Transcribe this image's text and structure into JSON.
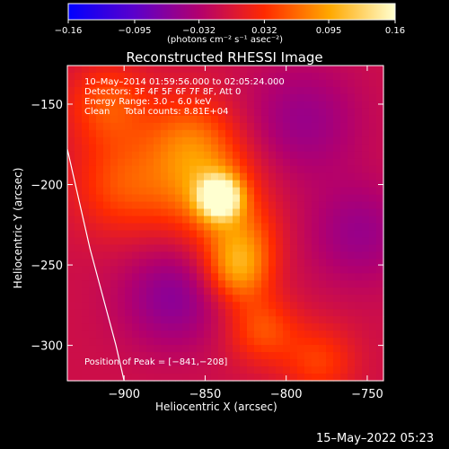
{
  "colorbar": {
    "ticks": [
      -0.16,
      -0.095,
      -0.032,
      0.032,
      0.095,
      0.16
    ],
    "tick_labels": [
      "−0.16",
      "−0.095",
      "−0.032",
      "0.032",
      "0.095",
      "0.16"
    ],
    "units_label": "(photons cm⁻² s⁻¹ asec⁻²)",
    "colormap": [
      "#0000ff",
      "#5a00cc",
      "#b2006e",
      "#ff2a00",
      "#ffa800",
      "#ffffd0"
    ]
  },
  "chart_data": {
    "type": "heatmap",
    "title": "Reconstructed RHESSI Image",
    "xlabel": "Heliocentric X (arcsec)",
    "ylabel": "Heliocentric Y (arcsec)",
    "xlim": [
      -935,
      -740
    ],
    "ylim": [
      -322,
      -126
    ],
    "x_ticks": [
      -900,
      -850,
      -800,
      -750
    ],
    "x_tick_labels": [
      "−900",
      "−850",
      "−800",
      "−750"
    ],
    "y_ticks": [
      -150,
      -200,
      -250,
      -300
    ],
    "y_tick_labels": [
      "−150",
      "−200",
      "−250",
      "−300"
    ],
    "peak": [
      -841,
      -208
    ],
    "limb_curve": [
      [
        -935,
        -178
      ],
      [
        -921,
        -240
      ],
      [
        -905,
        -300
      ],
      [
        -900,
        -322
      ]
    ],
    "sources": [
      {
        "x": -841,
        "y": -208,
        "amplitude": 0.16,
        "size": 9
      },
      {
        "x": -848,
        "y": -203,
        "amplitude": 0.08,
        "size": 22
      },
      {
        "x": -830,
        "y": -255,
        "amplitude": 0.08,
        "size": 14
      },
      {
        "x": -828,
        "y": -235,
        "amplitude": 0.06,
        "size": 16
      },
      {
        "x": -860,
        "y": -170,
        "amplitude": 0.06,
        "size": 20
      },
      {
        "x": -900,
        "y": -200,
        "amplitude": 0.06,
        "size": 22
      },
      {
        "x": -910,
        "y": -150,
        "amplitude": 0.06,
        "size": 18
      },
      {
        "x": -815,
        "y": -290,
        "amplitude": 0.06,
        "size": 15
      },
      {
        "x": -780,
        "y": -310,
        "amplitude": 0.05,
        "size": 16
      },
      {
        "x": -870,
        "y": -270,
        "amplitude": -0.05,
        "size": 22
      },
      {
        "x": -790,
        "y": -160,
        "amplitude": -0.04,
        "size": 25
      },
      {
        "x": -755,
        "y": -230,
        "amplitude": -0.04,
        "size": 22
      }
    ],
    "info_lines": [
      "10–May–2014 01:59:56.000 to 02:05:24.000",
      "Detectors: 3F 4F 5F 6F 7F 8F, Att 0",
      "Energy Range: 3.0 – 6.0 keV",
      "Clean     Total counts: 8.81E+04"
    ],
    "peak_label": "Position of Peak = [−841,−208]"
  },
  "timestamp": "15–May–2022 05:23"
}
